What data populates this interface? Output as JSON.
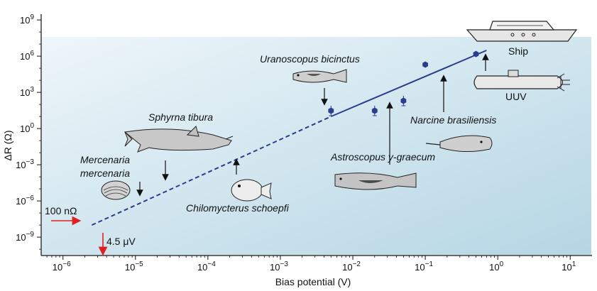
{
  "chart_data": {
    "type": "scatter",
    "xlabel": "Bias potential (V)",
    "ylabel": "ΔR (Ω)",
    "x_scale": "log",
    "y_scale": "log",
    "xlim": [
      5e-07,
      20
    ],
    "ylim": [
      3e-11,
      3000000000.0
    ],
    "x_ticks": [
      {
        "v": 1e-06,
        "base": "10",
        "exp": "−6"
      },
      {
        "v": 1e-05,
        "base": "10",
        "exp": "−5"
      },
      {
        "v": 0.0001,
        "base": "10",
        "exp": "−4"
      },
      {
        "v": 0.001,
        "base": "10",
        "exp": "−3"
      },
      {
        "v": 0.01,
        "base": "10",
        "exp": "−2"
      },
      {
        "v": 0.1,
        "base": "10",
        "exp": "−1"
      },
      {
        "v": 1,
        "base": "10",
        "exp": "0"
      },
      {
        "v": 10,
        "base": "10",
        "exp": "1"
      }
    ],
    "y_ticks": [
      {
        "v": 1e-09,
        "base": "10",
        "exp": "−9"
      },
      {
        "v": 1e-06,
        "base": "10",
        "exp": "−6"
      },
      {
        "v": 0.001,
        "base": "10",
        "exp": "−3"
      },
      {
        "v": 1,
        "base": "10",
        "exp": "0"
      },
      {
        "v": 1000.0,
        "base": "10",
        "exp": "3"
      },
      {
        "v": 1000000.0,
        "base": "10",
        "exp": "6"
      },
      {
        "v": 1000000000.0,
        "base": "10",
        "exp": "9"
      }
    ],
    "points": [
      {
        "x": 0.005,
        "y": 30,
        "err": true
      },
      {
        "x": 0.02,
        "y": 30,
        "err": true
      },
      {
        "x": 0.05,
        "y": 200,
        "err": true
      },
      {
        "x": 0.1,
        "y": 200000,
        "err": false
      },
      {
        "x": 0.5,
        "y": 1500000,
        "err": false
      }
    ],
    "fit_solid": [
      [
        0.005,
        10
      ],
      [
        0.7,
        3000000
      ]
    ],
    "fit_dashed": [
      [
        2.5e-06,
        1e-08
      ],
      [
        0.005,
        10
      ]
    ],
    "species_labels": [
      {
        "id": "uranoscopus",
        "text": "Uranoscopus bicinctus"
      },
      {
        "id": "sphyrna",
        "text": "Sphyrna tiburа"
      },
      {
        "id": "mercenaria-1",
        "text": "Mercenaria"
      },
      {
        "id": "mercenaria-2",
        "text": "mercenaria"
      },
      {
        "id": "chilomycterus",
        "text": "Chilomycterus schoepfi"
      },
      {
        "id": "astroscopus",
        "text": "Astroscopus y-graecum"
      },
      {
        "id": "narcine",
        "text": "Narcine brasiliensis"
      }
    ],
    "vehicle_labels": {
      "ship": "Ship",
      "uuv": "UUV"
    },
    "annotations": {
      "resistance": "100 nΩ",
      "voltage": "4.5 μV"
    },
    "colors": {
      "point": "#2b3e8c",
      "line": "#2b3e8c",
      "arrow_red": "#e02020",
      "background_light": "#eef6fa",
      "background_dark": "#b5d6e4"
    }
  }
}
